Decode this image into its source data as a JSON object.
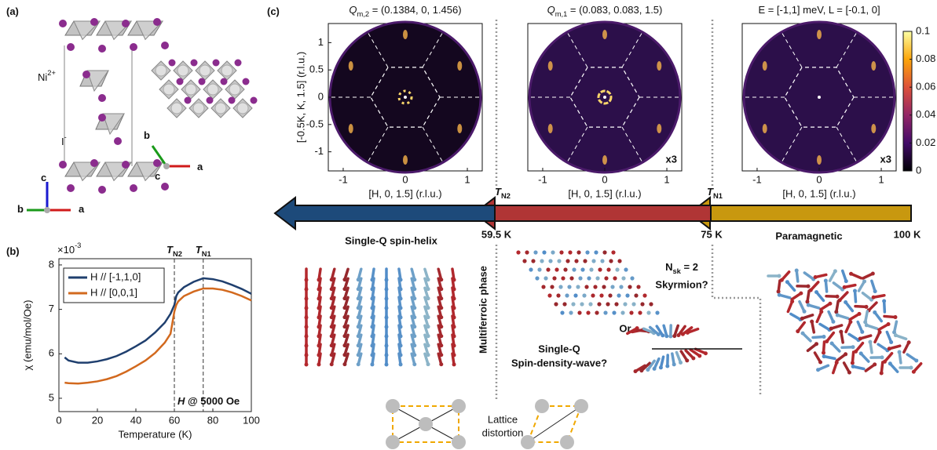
{
  "panels": {
    "a": {
      "label": "(a)",
      "ni": {
        "text": "Ni",
        "sup": "2+"
      },
      "iodine": {
        "text": "I",
        "sup": "-"
      },
      "axes1": [
        "b",
        "c",
        "a"
      ],
      "axes2": [
        "b",
        "c",
        "a"
      ]
    },
    "b": {
      "label": "(b)"
    },
    "c": {
      "label": "(c)",
      "maps": [
        {
          "title": {
            "symbol": "Q",
            "sub": "m,2",
            "rest": " = (0.1384, 0, 1.456)"
          }
        },
        {
          "title": {
            "symbol": "Q",
            "sub": "m,1",
            "rest": " = (0.083, 0.083, 1.5)"
          },
          "scale": "x3"
        },
        {
          "title": {
            "rest": "E = [-1,1] meV, L = [-0.1, 0]"
          },
          "scale": "x3"
        }
      ],
      "xlabel": "[H, 0, 1.5] (r.l.u.)",
      "ylabel": "[-0.5K, K, 1.5] (r.l.u.)",
      "xlim": [
        -1.24,
        1.24
      ],
      "ylim": [
        -1.35,
        1.35
      ],
      "xticks": [
        -1,
        0,
        1
      ],
      "yticks": [
        -1,
        -0.5,
        0,
        0.5,
        1
      ],
      "colorbar_lim": [
        0,
        0.1
      ],
      "colorbar_ticks": [
        0,
        0.02,
        0.04,
        0.06,
        0.08,
        0.1
      ]
    },
    "phases": {
      "tn2": {
        "symbol": "T",
        "sub": "N2"
      },
      "tn1": {
        "symbol": "T",
        "sub": "N1"
      },
      "t_low": "59.5 K",
      "t_mid": "75 K",
      "t_high": "100 K",
      "helix": "Single-Q spin-helix",
      "para": "Paramagnetic",
      "multiferroic": "Multiferroic phase",
      "skyrmion": {
        "text": "N",
        "sub": "sk",
        "rest": " = 2",
        "line2": "Skyrmion?"
      },
      "or": "Or",
      "sdw": [
        "Single-Q",
        "Spin-density-wave?"
      ],
      "lattice": [
        "Lattice",
        "distortion"
      ]
    }
  },
  "chart_data": {
    "type": "line",
    "xlabel": "Temperature (K)",
    "ylabel": "χ (emu/mol/Oe)",
    "multiplier": {
      "base": "×10",
      "exp": "-3"
    },
    "annotation": {
      "italic": "H",
      "rest": " @ 5000 Oe"
    },
    "x": [
      3,
      5,
      10,
      15,
      20,
      25,
      30,
      35,
      40,
      45,
      50,
      55,
      58,
      60,
      61,
      62,
      65,
      70,
      75,
      80,
      85,
      90,
      95,
      100
    ],
    "series": [
      {
        "name": "H // [-1,1,0]",
        "color": "#1f3f6e",
        "values": [
          5.92,
          5.85,
          5.8,
          5.8,
          5.83,
          5.88,
          5.95,
          6.05,
          6.17,
          6.3,
          6.48,
          6.7,
          6.9,
          7.1,
          7.3,
          7.38,
          7.5,
          7.62,
          7.7,
          7.68,
          7.63,
          7.55,
          7.46,
          7.35
        ]
      },
      {
        "name": "H // [0,0,1]",
        "color": "#d2691e",
        "values": [
          5.35,
          5.34,
          5.33,
          5.35,
          5.38,
          5.43,
          5.5,
          5.6,
          5.72,
          5.85,
          6.02,
          6.25,
          6.45,
          6.95,
          7.1,
          7.18,
          7.3,
          7.4,
          7.47,
          7.47,
          7.44,
          7.38,
          7.3,
          7.2
        ]
      }
    ],
    "transitions": [
      {
        "x": 60,
        "label": {
          "symbol": "T",
          "sub": "N2"
        }
      },
      {
        "x": 75,
        "label": {
          "symbol": "T",
          "sub": "N1"
        }
      }
    ],
    "xlim": [
      0,
      100
    ],
    "ylim": [
      4.7,
      8.14
    ],
    "xticks": [
      0,
      20,
      40,
      60,
      80,
      100
    ],
    "yticks": [
      5,
      6,
      7,
      8
    ],
    "legend": "upper-left"
  }
}
